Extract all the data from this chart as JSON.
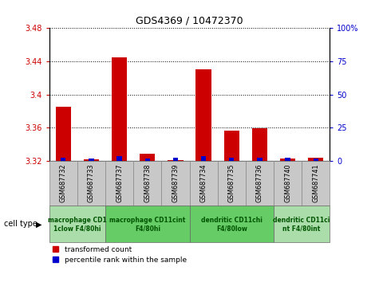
{
  "title": "GDS4369 / 10472370",
  "samples": [
    "GSM687732",
    "GSM687733",
    "GSM687737",
    "GSM687738",
    "GSM687739",
    "GSM687734",
    "GSM687735",
    "GSM687736",
    "GSM687740",
    "GSM687741"
  ],
  "red_values": [
    3.385,
    3.322,
    3.445,
    3.328,
    3.321,
    3.43,
    3.356,
    3.359,
    3.323,
    3.324
  ],
  "blue_values": [
    2.0,
    1.5,
    3.5,
    1.5,
    2.5,
    3.5,
    2.5,
    2.5,
    2.0,
    1.5
  ],
  "ylim": [
    3.32,
    3.48
  ],
  "y_ticks_left": [
    3.32,
    3.36,
    3.4,
    3.44,
    3.48
  ],
  "y_ticks_right": [
    0,
    25,
    50,
    75,
    100
  ],
  "red_color": "#CC0000",
  "blue_color": "#0000CC",
  "cell_type_groups": [
    {
      "label": "macrophage CD1\n1clow F4/80hi",
      "start": 0,
      "end": 2,
      "color": "#aaddaa"
    },
    {
      "label": "macrophage CD11cint\nF4/80hi",
      "start": 2,
      "end": 5,
      "color": "#66cc66"
    },
    {
      "label": "dendritic CD11chi\nF4/80low",
      "start": 5,
      "end": 8,
      "color": "#66cc66"
    },
    {
      "label": "dendritic CD11ci\nnt F4/80int",
      "start": 8,
      "end": 10,
      "color": "#aaddaa"
    }
  ],
  "legend_red": "transformed count",
  "legend_blue": "percentile rank within the sample",
  "cell_type_label": "cell type",
  "xtick_bg_color": "#c8c8c8",
  "xtick_border_color": "#888888"
}
